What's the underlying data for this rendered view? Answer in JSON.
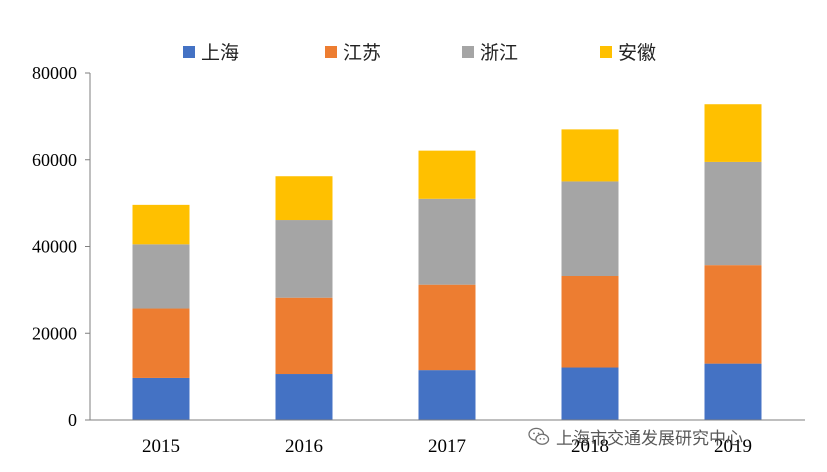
{
  "chart_data": {
    "type": "bar",
    "stacked": true,
    "categories": [
      "2015",
      "2016",
      "2017",
      "2018",
      "2019"
    ],
    "series": [
      {
        "name": "上海",
        "color": "#4472C4",
        "values": [
          9700,
          10600,
          11500,
          12100,
          13000
        ]
      },
      {
        "name": "江苏",
        "color": "#ED7D31",
        "values": [
          16000,
          17600,
          19700,
          21100,
          22700
        ]
      },
      {
        "name": "浙江",
        "color": "#A5A5A5",
        "values": [
          14800,
          17900,
          19800,
          21800,
          23800
        ]
      },
      {
        "name": "安徽",
        "color": "#FFC000",
        "values": [
          9100,
          10100,
          11100,
          12000,
          13300
        ]
      }
    ],
    "ylim": [
      0,
      80000
    ],
    "yticks": [
      "0",
      "20000",
      "40000",
      "60000",
      "80000"
    ],
    "grid": false,
    "legend_position": "top"
  },
  "watermark": {
    "icon": "wechat-icon",
    "text": "上海市交通发展研究中心"
  }
}
